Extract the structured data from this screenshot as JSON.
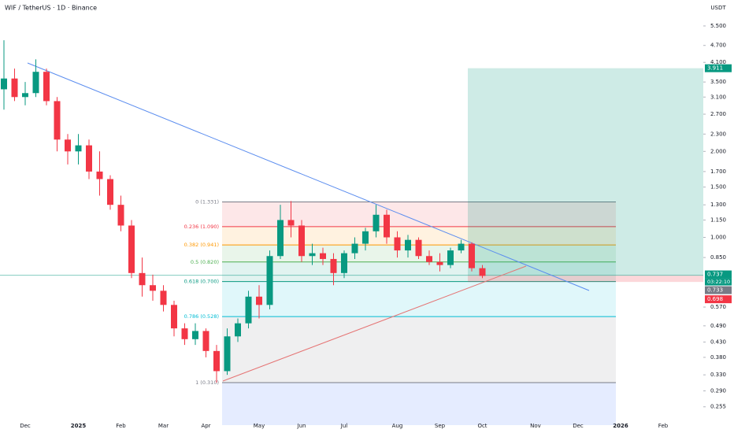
{
  "chart_data": {
    "type": "candlestick",
    "title": "WIF / TetherUS · 1D · Binance",
    "currency": "USDT",
    "log_scale": true,
    "up_color": "#089981",
    "down_color": "#f23645",
    "categories": [
      null,
      null,
      "Dec",
      null,
      null,
      null,
      null,
      "2025",
      null,
      null,
      null,
      "Feb",
      null,
      null,
      null,
      "Mar",
      null,
      null,
      null,
      "Apr",
      null,
      null,
      null,
      null,
      "May",
      null,
      null,
      null,
      "Jun",
      null,
      null,
      null,
      "Jul",
      null,
      null,
      null,
      null,
      "Aug",
      null,
      null,
      null,
      "Sep",
      null,
      null,
      null,
      "Oct",
      null,
      null,
      null,
      null,
      "Nov",
      null,
      null,
      null,
      "Dec",
      null,
      null,
      null,
      "2026",
      null,
      null,
      null,
      "Feb",
      null,
      null,
      null
    ],
    "open": [
      3.3,
      3.6,
      3.1,
      3.2,
      3.8,
      3.0,
      2.2,
      2.0,
      2.1,
      1.7,
      1.6,
      1.3,
      1.1,
      0.75,
      0.68,
      0.65,
      0.58,
      0.48,
      0.44,
      0.47,
      0.4,
      0.34,
      0.45,
      0.5,
      0.62,
      0.58,
      0.86,
      1.15,
      1.1,
      0.86,
      0.88,
      0.84,
      0.75,
      0.88,
      0.95,
      1.05,
      1.2,
      1.0,
      0.9,
      0.98,
      0.86,
      0.82,
      0.8,
      0.9,
      0.95,
      0.78,
      null,
      null,
      null,
      null,
      null,
      null,
      null,
      null,
      null,
      null,
      null,
      null,
      null,
      null,
      null,
      null,
      null,
      null,
      null,
      null
    ],
    "high": [
      4.9,
      3.9,
      3.5,
      4.2,
      3.9,
      3.1,
      2.3,
      2.3,
      2.2,
      2.0,
      1.65,
      1.4,
      1.15,
      0.85,
      0.74,
      0.68,
      0.6,
      0.5,
      0.5,
      0.48,
      0.42,
      0.48,
      0.52,
      0.65,
      0.68,
      0.9,
      1.3,
      1.34,
      1.15,
      0.95,
      0.92,
      0.88,
      0.9,
      1.0,
      1.08,
      1.3,
      1.25,
      1.05,
      1.02,
      1.0,
      0.9,
      0.88,
      0.92,
      0.98,
      0.96,
      0.8,
      null,
      null,
      null,
      null,
      null,
      null,
      null,
      null,
      null,
      null,
      null,
      null,
      null,
      null,
      null,
      null,
      null,
      null,
      null,
      null
    ],
    "low": [
      2.8,
      3.0,
      2.9,
      3.1,
      2.9,
      2.0,
      1.8,
      1.8,
      1.6,
      1.4,
      1.25,
      1.05,
      0.72,
      0.62,
      0.6,
      0.55,
      0.45,
      0.42,
      0.42,
      0.38,
      0.31,
      0.33,
      0.43,
      0.48,
      0.52,
      0.56,
      0.84,
      1.0,
      0.82,
      0.8,
      0.8,
      0.68,
      0.72,
      0.84,
      0.9,
      1.0,
      0.95,
      0.85,
      0.85,
      0.84,
      0.8,
      0.76,
      0.78,
      0.88,
      0.76,
      0.72,
      null,
      null,
      null,
      null,
      null,
      null,
      null,
      null,
      null,
      null,
      null,
      null,
      null,
      null,
      null,
      null,
      null,
      null,
      null,
      null
    ],
    "close": [
      3.6,
      3.1,
      3.2,
      3.8,
      3.0,
      2.2,
      2.0,
      2.1,
      1.7,
      1.6,
      1.3,
      1.1,
      0.75,
      0.68,
      0.65,
      0.58,
      0.48,
      0.44,
      0.47,
      0.4,
      0.34,
      0.45,
      0.5,
      0.62,
      0.58,
      0.86,
      1.15,
      1.1,
      0.86,
      0.88,
      0.84,
      0.75,
      0.88,
      0.95,
      1.05,
      1.2,
      1.0,
      0.9,
      0.98,
      0.86,
      0.82,
      0.8,
      0.9,
      0.95,
      0.78,
      0.733,
      null,
      null,
      null,
      null,
      null,
      null,
      null,
      null,
      null,
      null,
      null,
      null,
      null,
      null,
      null,
      null,
      null,
      null,
      null,
      null
    ],
    "ylim": [
      0.22,
      6.78
    ],
    "yticks": [
      {
        "value": 5.5,
        "label": "5.500"
      },
      {
        "value": 4.7,
        "label": "4.700"
      },
      {
        "value": 4.1,
        "label": "4.100"
      },
      {
        "value": 3.5,
        "label": "3.500"
      },
      {
        "value": 3.1,
        "label": "3.100"
      },
      {
        "value": 2.7,
        "label": "2.700"
      },
      {
        "value": 2.3,
        "label": "2.300"
      },
      {
        "value": 2.0,
        "label": "2.000"
      },
      {
        "value": 1.7,
        "label": "1.700"
      },
      {
        "value": 1.5,
        "label": "1.500"
      },
      {
        "value": 1.3,
        "label": "1.300"
      },
      {
        "value": 1.15,
        "label": "1.150"
      },
      {
        "value": 1.0,
        "label": "1.000"
      },
      {
        "value": 0.85,
        "label": "0.850"
      },
      {
        "value": 0.57,
        "label": "0.570"
      },
      {
        "value": 0.49,
        "label": "0.490"
      },
      {
        "value": 0.43,
        "label": "0.430"
      },
      {
        "value": 0.38,
        "label": "0.380"
      },
      {
        "value": 0.33,
        "label": "0.330"
      },
      {
        "value": 0.29,
        "label": "0.290"
      },
      {
        "value": 0.255,
        "label": "0.255"
      }
    ],
    "fib_levels": [
      {
        "value": 1.331,
        "label": "0 (1.331)",
        "color": "#787b86"
      },
      {
        "value": 1.09,
        "label": "0.236 (1.090)",
        "color": "#f23645"
      },
      {
        "value": 0.941,
        "label": "0.382 (0.941)",
        "color": "#ff9800"
      },
      {
        "value": 0.82,
        "label": "0.5 (0.820)",
        "color": "#4caf50"
      },
      {
        "value": 0.7,
        "label": "0.618 (0.700)",
        "color": "#089981"
      },
      {
        "value": 0.528,
        "label": "0.786 (0.528)",
        "color": "#00bcd4"
      },
      {
        "value": 0.31,
        "label": "1 (0.310)",
        "color": "#787b86"
      }
    ],
    "position": {
      "target": {
        "value": 3.911,
        "label": "3.911"
      },
      "entry": {
        "value": 0.737,
        "label": "0.737"
      },
      "stop": {
        "value": 0.698,
        "label": "0.698"
      }
    },
    "last_price": {
      "value": 0.733,
      "label": "0.733"
    },
    "countdown": "03:22:10"
  }
}
